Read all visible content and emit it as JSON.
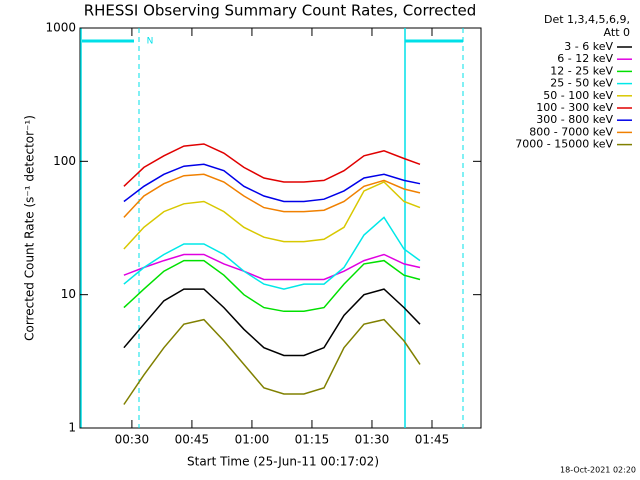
{
  "chart_data": {
    "type": "line",
    "title": "RHESSI Observing Summary Count Rates, Corrected",
    "xlabel": "Start Time (25-Jun-11 00:17:02)",
    "ylabel": "Corrected Count Rate (s⁻¹ detector⁻¹)",
    "legend_title": [
      "Det 1,3,4,5,6,9,",
      "Att 0"
    ],
    "annotations": [
      "N"
    ],
    "footer": "18-Oct-2021 02:20",
    "log_y": true,
    "xlim": [
      17.03,
      117.25
    ],
    "xticks": [
      {
        "value": 30,
        "label": "00:30"
      },
      {
        "value": 45,
        "label": "00:45"
      },
      {
        "value": 60,
        "label": "01:00"
      },
      {
        "value": 75,
        "label": "01:15"
      },
      {
        "value": 90,
        "label": "01:30"
      },
      {
        "value": 105,
        "label": "01:45"
      }
    ],
    "ylim": [
      1,
      1000
    ],
    "yticks": [
      1,
      10,
      100,
      1000
    ],
    "x": [
      28,
      33,
      38,
      43,
      48,
      53,
      58,
      63,
      68,
      73,
      78,
      83,
      88,
      93,
      98,
      102
    ],
    "series": [
      {
        "name": "3 - 6 keV",
        "color": "#000000",
        "values": [
          4,
          6,
          9,
          11,
          11,
          8,
          5.5,
          4,
          3.5,
          3.5,
          4,
          7,
          10,
          11,
          8,
          6
        ]
      },
      {
        "name": "6 - 12 keV",
        "color": "#e000e0",
        "values": [
          14,
          16,
          18,
          20,
          20,
          17,
          15,
          13,
          13,
          13,
          13,
          15,
          18,
          20,
          17,
          16
        ]
      },
      {
        "name": "12 - 25 keV",
        "color": "#00e000",
        "values": [
          8,
          11,
          15,
          18,
          18,
          14,
          10,
          8,
          7.5,
          7.5,
          8,
          12,
          17,
          18,
          14,
          13
        ]
      },
      {
        "name": "25 - 50 keV",
        "color": "#00e8e8",
        "values": [
          12,
          16,
          20,
          24,
          24,
          20,
          15,
          12,
          11,
          12,
          12,
          16,
          28,
          38,
          22,
          18
        ]
      },
      {
        "name": "50 - 100 keV",
        "color": "#d8c800",
        "values": [
          22,
          32,
          42,
          48,
          50,
          42,
          32,
          27,
          25,
          25,
          26,
          32,
          60,
          70,
          50,
          45
        ]
      },
      {
        "name": "100 - 300 keV",
        "color": "#e00000",
        "values": [
          65,
          90,
          110,
          130,
          135,
          115,
          90,
          75,
          70,
          70,
          72,
          85,
          110,
          120,
          105,
          95
        ]
      },
      {
        "name": "300 - 800 keV",
        "color": "#0000e8",
        "values": [
          50,
          65,
          80,
          92,
          95,
          85,
          65,
          55,
          50,
          50,
          52,
          60,
          75,
          80,
          72,
          68
        ]
      },
      {
        "name": "800 - 7000 keV",
        "color": "#f08000",
        "values": [
          38,
          55,
          68,
          78,
          80,
          70,
          55,
          45,
          42,
          42,
          43,
          50,
          65,
          72,
          62,
          58
        ]
      },
      {
        "name": "7000 - 15000 keV",
        "color": "#808000",
        "values": [
          1.5,
          2.5,
          4,
          6,
          6.5,
          4.5,
          3,
          2,
          1.8,
          1.8,
          2,
          4,
          6,
          6.5,
          4.5,
          3
        ]
      }
    ]
  }
}
